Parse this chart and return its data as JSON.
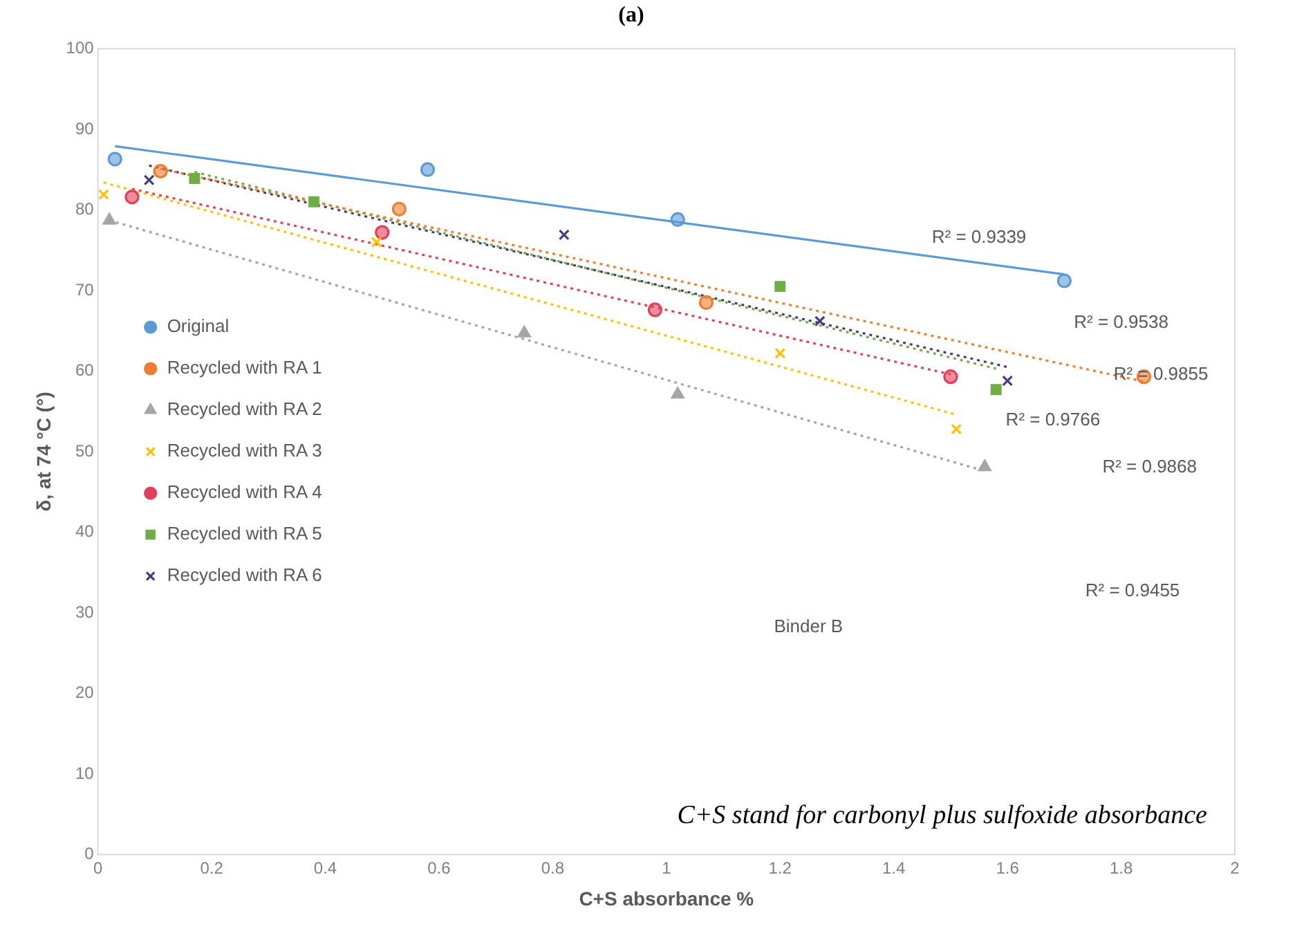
{
  "chart_data": {
    "type": "scatter",
    "title": "(a)",
    "xlabel": "C+S absorbance %",
    "ylabel": "δ, at 74 °C (°)",
    "xlim": [
      0,
      2
    ],
    "xticks": [
      0,
      0.2,
      0.4,
      0.6,
      0.8,
      1,
      1.2,
      1.4,
      1.6,
      1.8,
      2
    ],
    "ylim": [
      0,
      100
    ],
    "yticks": [
      0,
      10,
      20,
      30,
      40,
      50,
      60,
      70,
      80,
      90,
      100
    ],
    "grid": false,
    "legend": "left",
    "series": [
      {
        "name": "Original",
        "color": "#5b9bd5",
        "marker": "circle",
        "x": [
          0.03,
          0.58,
          1.02,
          1.7
        ],
        "values": [
          86.3,
          85.0,
          78.8,
          71.2
        ]
      },
      {
        "name": "Recycled with RA 1",
        "color": "#ed7d31",
        "marker": "circle",
        "x": [
          0.11,
          0.53,
          1.07,
          1.84
        ],
        "values": [
          84.8,
          80.1,
          68.5,
          59.3
        ]
      },
      {
        "name": "Recycled with RA 2",
        "color": "#a5a5a5",
        "marker": "triangle",
        "x": [
          0.02,
          0.75,
          1.02,
          1.56
        ],
        "values": [
          78.7,
          64.7,
          57.1,
          48.1
        ]
      },
      {
        "name": "Recycled with RA 3",
        "color": "#ffc000",
        "marker": "cross",
        "x": [
          0.01,
          0.49,
          1.2,
          1.51
        ],
        "values": [
          81.9,
          76.0,
          62.2,
          52.8
        ]
      },
      {
        "name": "Recycled with RA 4",
        "color": "#e0405a",
        "marker": "circle",
        "x": [
          0.06,
          0.5,
          0.98,
          1.5
        ],
        "values": [
          81.6,
          77.2,
          67.6,
          59.3
        ]
      },
      {
        "name": "Recycled with RA 5",
        "color": "#70ad47",
        "marker": "square",
        "x": [
          0.17,
          0.38,
          1.2,
          1.58
        ],
        "values": [
          83.9,
          81.0,
          70.5,
          57.7
        ]
      },
      {
        "name": "Recycled with RA 6",
        "color": "#4b3a7a",
        "marker": "cross",
        "x": [
          0.09,
          0.82,
          1.27,
          1.6
        ],
        "values": [
          83.7,
          76.9,
          66.2,
          58.8
        ]
      },
      {
        "type": "line",
        "color": "#5b9bd5",
        "line_style": "solid",
        "x": [
          0.03,
          1.7
        ],
        "values": [
          87.9,
          72.0
        ]
      },
      {
        "type": "line",
        "color": "#ed7d31",
        "line_style": "dotted",
        "x": [
          0.11,
          1.84
        ],
        "values": [
          85.1,
          58.7
        ]
      },
      {
        "type": "line",
        "color": "#a5a5a5",
        "line_style": "dotted",
        "x": [
          0.02,
          1.56
        ],
        "values": [
          78.7,
          47.6
        ]
      },
      {
        "type": "line",
        "color": "#ffc000",
        "line_style": "dotted",
        "x": [
          0.01,
          1.51
        ],
        "values": [
          83.4,
          54.6
        ]
      },
      {
        "type": "line",
        "color": "#e0405a",
        "line_style": "dotted",
        "x": [
          0.06,
          1.5
        ],
        "values": [
          82.6,
          59.6
        ]
      },
      {
        "type": "line",
        "color": "#70ad47",
        "line_style": "dotted",
        "x": [
          0.17,
          1.58
        ],
        "values": [
          84.7,
          60.3
        ]
      },
      {
        "type": "line",
        "color": "#4b3a7a",
        "line_style": "dotted",
        "x": [
          0.09,
          1.6
        ],
        "values": [
          85.5,
          60.5
        ]
      }
    ],
    "annotations": [
      "R² = 0.9339",
      "R² = 0.9538",
      "R² = 0.9855",
      "R² = 0.9766",
      "R² = 0.9868",
      "R² = 0.9455",
      "Binder B",
      "C+S stand for carbonyl plus sulfoxide absorbance"
    ]
  }
}
